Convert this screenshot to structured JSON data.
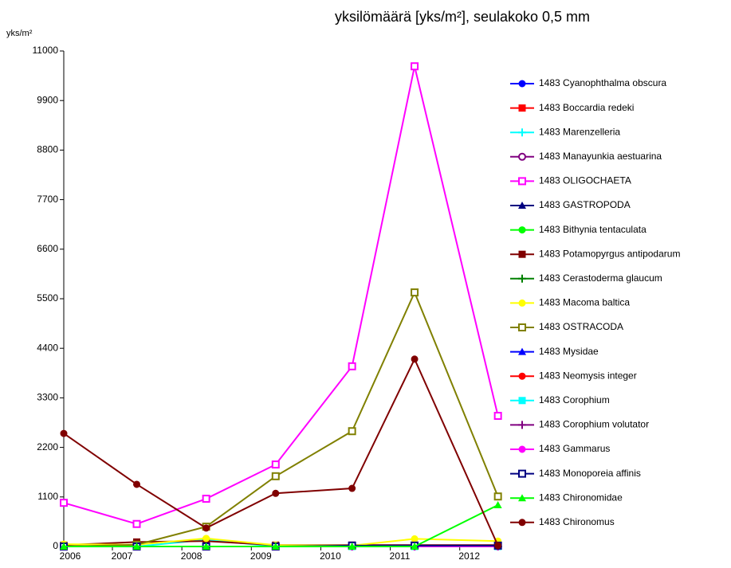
{
  "chart_data": {
    "type": "line",
    "title": "yksilömäärä [yks/m²], seulakoko 0,5 mm",
    "y_label": "yks/m²",
    "x": [
      2006.3,
      2007.35,
      2008.35,
      2009.35,
      2010.45,
      2011.35,
      2012.55
    ],
    "xlim": [
      2006.3,
      2012.6
    ],
    "xticks": [
      2006,
      2007,
      2008,
      2009,
      2010,
      2011,
      2012
    ],
    "ylim": [
      0,
      11000
    ],
    "yticks": [
      0,
      1100,
      2200,
      3300,
      4400,
      5500,
      6600,
      7700,
      8800,
      9900,
      11000
    ],
    "legend": "right",
    "series": [
      {
        "name": "1483 Cyanophthalma obscura",
        "color": "#0000ff",
        "marker": "circle",
        "values": [
          0,
          0,
          0,
          0,
          0,
          0,
          0
        ]
      },
      {
        "name": "1483 Boccardia redeki",
        "color": "#ff0000",
        "marker": "square",
        "values": [
          0,
          0,
          0,
          0,
          0,
          0,
          0
        ]
      },
      {
        "name": "1483 Marenzelleria",
        "color": "#00ffff",
        "marker": "plus",
        "values": [
          0,
          0,
          150,
          0,
          0,
          0,
          0
        ]
      },
      {
        "name": "1483 Manayunkia aestuarina",
        "color": "#800080",
        "marker": "open-circle",
        "values": [
          0,
          0,
          0,
          0,
          0,
          0,
          0
        ]
      },
      {
        "name": "1483 OLIGOCHAETA",
        "color": "#ff00ff",
        "marker": "open-square",
        "values": [
          970,
          500,
          1060,
          1820,
          4000,
          10660,
          2900
        ]
      },
      {
        "name": "1483 GASTROPODA",
        "color": "#000080",
        "marker": "triangle",
        "values": [
          0,
          0,
          0,
          0,
          0,
          0,
          0
        ]
      },
      {
        "name": "1483 Bithynia tentaculata",
        "color": "#00ff00",
        "marker": "circle",
        "values": [
          0,
          0,
          0,
          0,
          0,
          0,
          0
        ]
      },
      {
        "name": "1483 Potamopyrgus antipodarum",
        "color": "#800000",
        "marker": "square",
        "values": [
          30,
          100,
          120,
          30,
          30,
          30,
          30
        ]
      },
      {
        "name": "1483 Cerastoderma glaucum",
        "color": "#008000",
        "marker": "plus",
        "values": [
          0,
          0,
          0,
          0,
          0,
          0,
          0
        ]
      },
      {
        "name": "1483 Macoma baltica",
        "color": "#ffff00",
        "marker": "circle",
        "values": [
          50,
          40,
          180,
          30,
          20,
          170,
          120
        ]
      },
      {
        "name": "1483 OSTRACODA",
        "color": "#808000",
        "marker": "open-square",
        "values": [
          0,
          40,
          440,
          1560,
          2560,
          5640,
          1110
        ]
      },
      {
        "name": "1483 Mysidae",
        "color": "#0000ff",
        "marker": "triangle",
        "values": [
          0,
          0,
          0,
          0,
          0,
          0,
          0
        ]
      },
      {
        "name": "1483 Neomysis integer",
        "color": "#ff0000",
        "marker": "circle",
        "values": [
          0,
          0,
          0,
          0,
          0,
          0,
          0
        ]
      },
      {
        "name": "1483 Corophium",
        "color": "#00ffff",
        "marker": "square",
        "values": [
          0,
          0,
          0,
          0,
          0,
          0,
          0
        ]
      },
      {
        "name": "1483 Corophium volutator",
        "color": "#800080",
        "marker": "plus",
        "values": [
          0,
          0,
          0,
          0,
          0,
          0,
          0
        ]
      },
      {
        "name": "1483 Gammarus",
        "color": "#ff00ff",
        "marker": "circle",
        "values": [
          0,
          0,
          0,
          0,
          0,
          0,
          0
        ]
      },
      {
        "name": "1483 Monoporeia affinis",
        "color": "#000080",
        "marker": "open-square",
        "values": [
          0,
          0,
          0,
          0,
          20,
          20,
          20
        ]
      },
      {
        "name": "1483 Chironomidae",
        "color": "#00ff00",
        "marker": "triangle",
        "values": [
          0,
          0,
          0,
          0,
          0,
          0,
          920
        ]
      },
      {
        "name": "1483 Chironomus",
        "color": "#800000",
        "marker": "circle",
        "values": [
          2510,
          1380,
          410,
          1180,
          1290,
          4160,
          20
        ]
      }
    ]
  }
}
